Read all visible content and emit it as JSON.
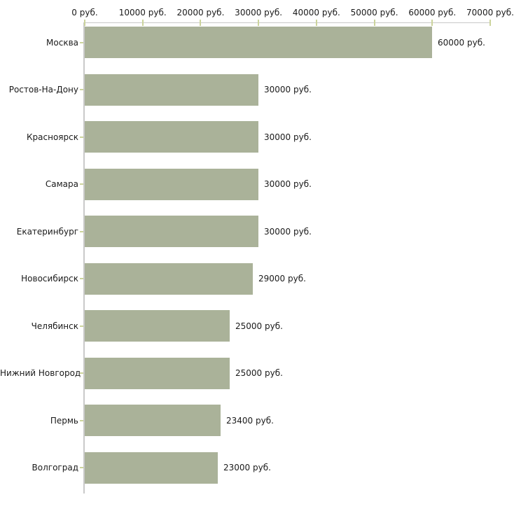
{
  "chart_data": {
    "type": "bar",
    "orientation": "horizontal",
    "title": "",
    "unit": "руб.",
    "categories": [
      "Москва",
      "Ростов-На-Дону",
      "Красноярск",
      "Самара",
      "Екатеринбург",
      "Новосибирск",
      "Челябинск",
      "Нижний Новгород",
      "Пермь",
      "Волгоград"
    ],
    "values": [
      60000,
      30000,
      30000,
      30000,
      30000,
      29000,
      25000,
      25000,
      23400,
      23000
    ],
    "value_labels": [
      "60000 руб.",
      "30000 руб.",
      "30000 руб.",
      "30000 руб.",
      "30000 руб.",
      "29000 руб.",
      "25000 руб.",
      "25000 руб.",
      "23400 руб.",
      "23000 руб."
    ],
    "x_axis": {
      "position": "top",
      "range": [
        0,
        70000
      ],
      "ticks": [
        0,
        10000,
        20000,
        30000,
        40000,
        50000,
        60000,
        70000
      ],
      "tick_labels": [
        "0 руб.",
        "10000 руб.",
        "20000 руб.",
        "30000 руб.",
        "40000 руб.",
        "50000 руб.",
        "60000 руб.",
        "70000 руб."
      ]
    },
    "legend": "none",
    "grid": false,
    "colors": {
      "bar": "#aab299",
      "axis_line": "#c9c9c9",
      "tick_mark": "#ccd49c",
      "text": "#1a1a1a",
      "background": "#ffffff"
    }
  }
}
